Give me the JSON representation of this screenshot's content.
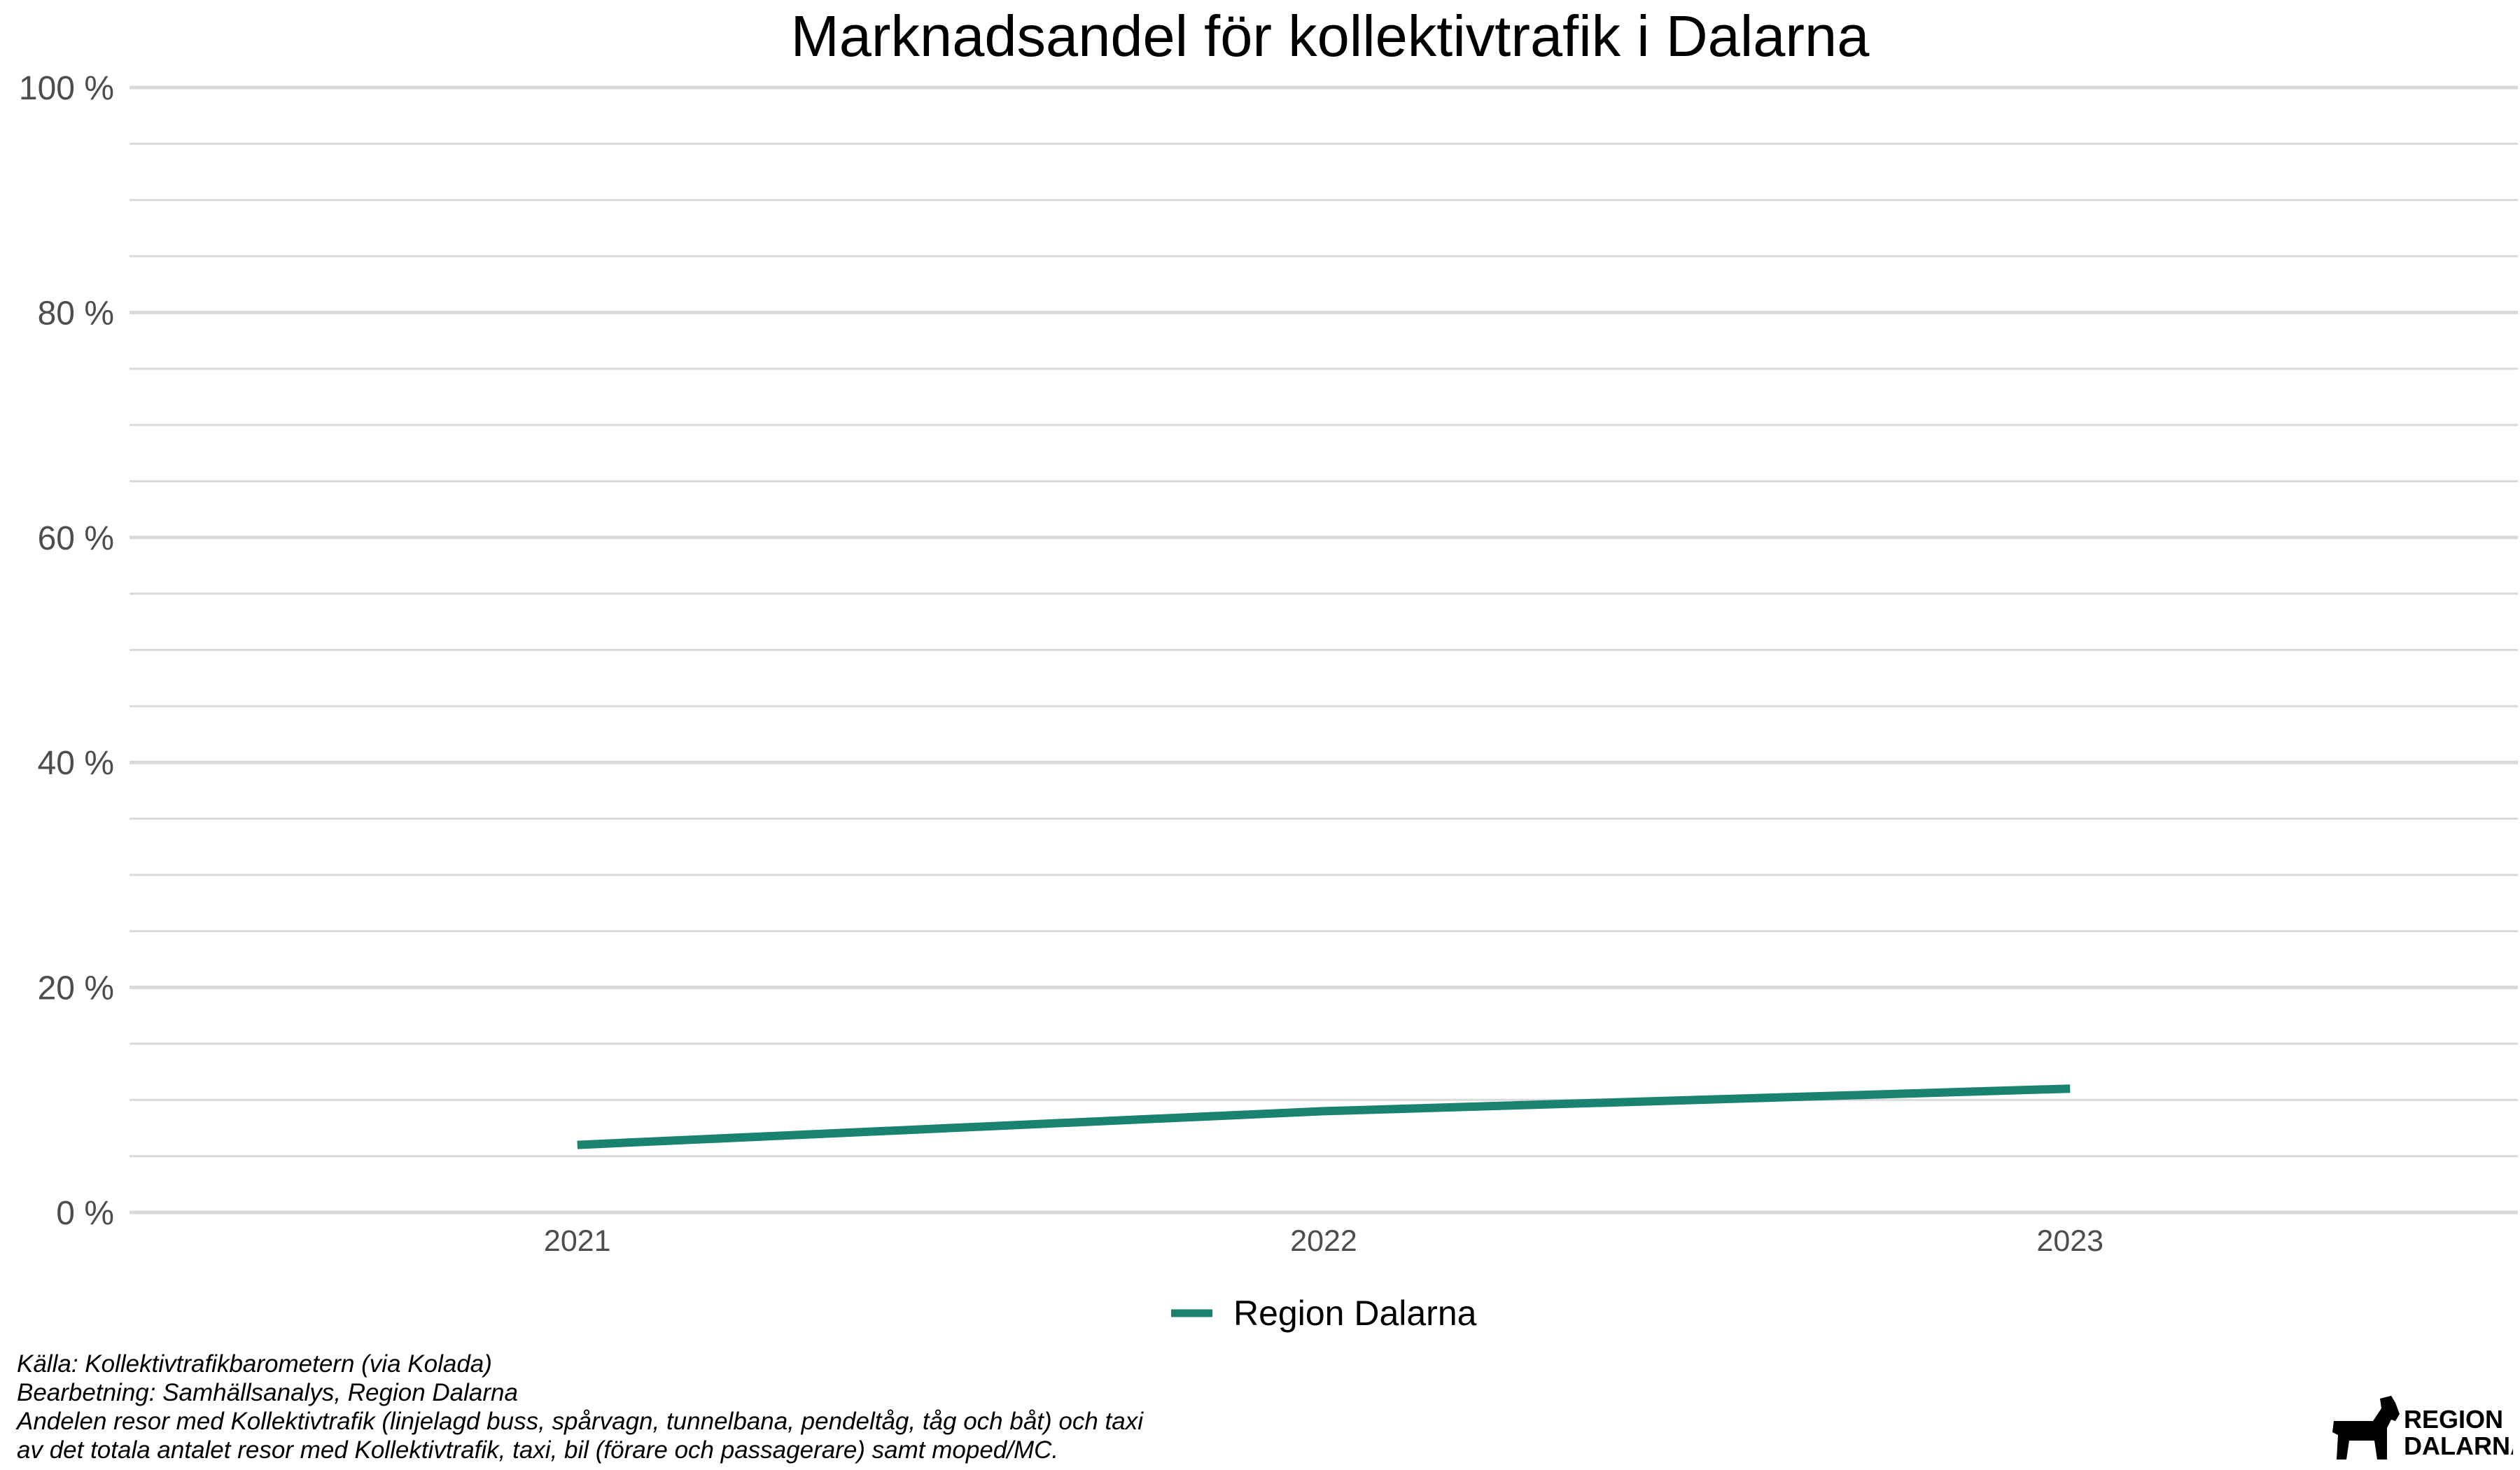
{
  "chart_data": {
    "type": "line",
    "title": "Marknadsandel för kollektivtrafik i Dalarna",
    "xlabel": "",
    "ylabel": "",
    "categories": [
      "2021",
      "2022",
      "2023"
    ],
    "series": [
      {
        "name": "Region Dalarna",
        "values": [
          6,
          9,
          11
        ],
        "color": "#1a8270"
      }
    ],
    "ylim": [
      0,
      100
    ],
    "yticks": [
      0,
      20,
      40,
      60,
      80,
      100
    ],
    "ytick_labels": [
      "0 %",
      "20 %",
      "40 %",
      "60 %",
      "80 %",
      "100 %"
    ],
    "minor_gridlines_every": 4,
    "grid": true,
    "legend_position": "bottom"
  },
  "caption": {
    "source": "Källa: Kollektivtrafikbarometern (via Kolada)",
    "processing": "Bearbetning: Samhällsanalys, Region Dalarna",
    "note_line1": "Andelen resor med Kollektivtrafik (linjelagd buss, spårvagn, tunnelbana, pendeltåg, tåg och båt) och taxi",
    "note_line2": "av det totala antalet resor med Kollektivtrafik, taxi, bil (förare och passagerare) samt moped/MC."
  },
  "logo": {
    "line1": "REGION",
    "line2": "DALARNA",
    "icon": "dala-horse-icon"
  },
  "colors": {
    "grid": "#d9d9d9",
    "line": "#1a8270",
    "axis_text": "#4d4d4d"
  }
}
